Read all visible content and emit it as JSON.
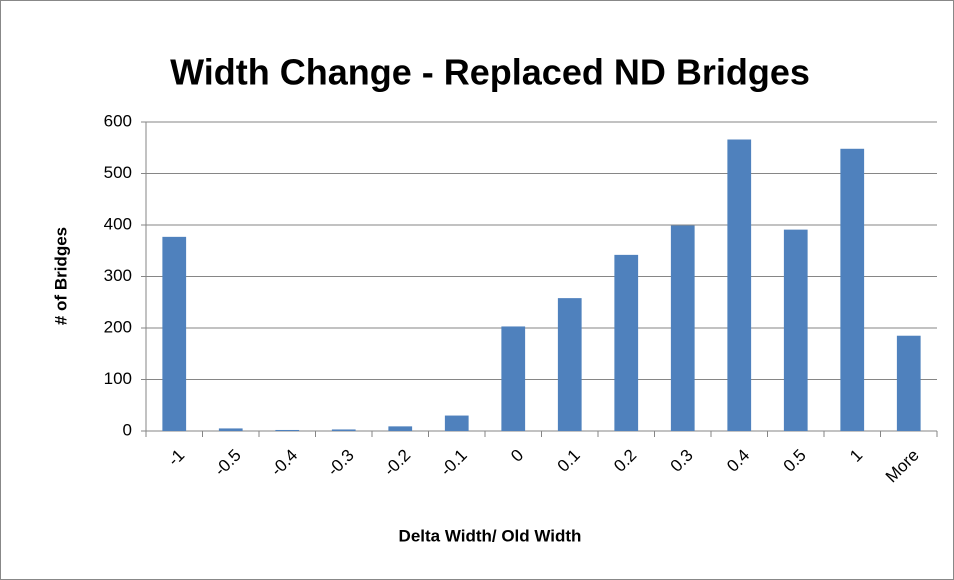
{
  "chart_data": {
    "type": "bar",
    "title": "Width Change - Replaced ND Bridges",
    "x_label": "Delta Width/ Old Width",
    "y_label": "# of Bridges",
    "categories": [
      "-1",
      "-0.5",
      "-0.4",
      "-0.3",
      "-0.2",
      "-0.1",
      "0",
      "0.1",
      "0.2",
      "0.3",
      "0.4",
      "0.5",
      "1",
      "More"
    ],
    "values": [
      377,
      5,
      2,
      3,
      9,
      30,
      203,
      258,
      342,
      399,
      566,
      391,
      548,
      185
    ],
    "color": "#4f81bd",
    "ylim": [
      0,
      600
    ],
    "yticks": [
      0,
      100,
      200,
      300,
      400,
      500,
      600
    ],
    "grid": true
  }
}
